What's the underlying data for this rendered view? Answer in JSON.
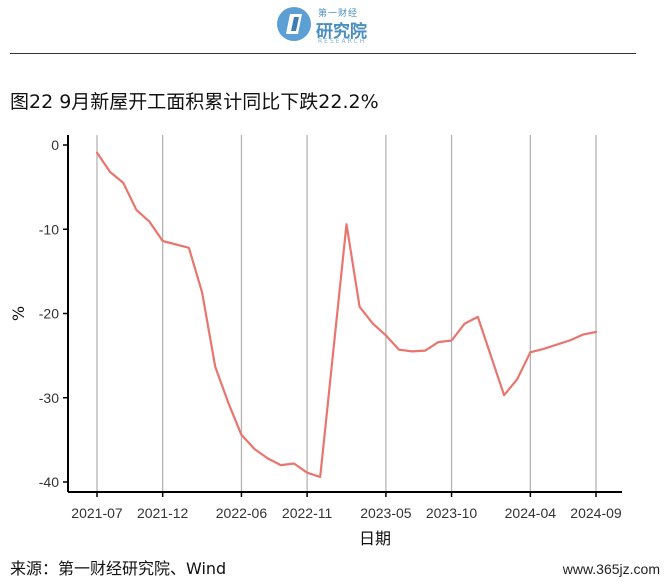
{
  "header": {
    "logo_sub": "第一财经",
    "logo_main": "研究院",
    "logo_en": "RESEARCH"
  },
  "title": "图22 9月新屋开工面积累计同比下跌22.2%",
  "source": "来源：第一财经研究院、Wind",
  "watermark": "www.365jz.com",
  "colors": {
    "line": "#e8766e",
    "grid": "#b3b3b3",
    "axis": "#000000"
  },
  "chart_data": {
    "type": "line",
    "xlabel": "日期",
    "ylabel": "%",
    "ylim": [
      -40,
      0
    ],
    "yticks": [
      0,
      -10,
      -20,
      -30,
      -40
    ],
    "xticks": [
      "2021-07",
      "2021-12",
      "2022-06",
      "2022-11",
      "2023-05",
      "2023-10",
      "2024-04",
      "2024-09"
    ],
    "grid": "vertical",
    "series": [
      {
        "x": [
          "2021-07",
          "2021-08",
          "2021-09",
          "2021-10",
          "2021-11",
          "2021-12",
          "2022-02",
          "2022-03",
          "2022-04",
          "2022-05",
          "2022-06",
          "2022-07",
          "2022-08",
          "2022-09",
          "2022-10",
          "2022-11",
          "2022-12",
          "2023-02",
          "2023-03",
          "2023-04",
          "2023-05",
          "2023-06",
          "2023-07",
          "2023-08",
          "2023-09",
          "2023-10",
          "2023-11",
          "2023-12",
          "2024-02",
          "2024-03",
          "2024-04",
          "2024-05",
          "2024-06",
          "2024-07",
          "2024-08",
          "2024-09"
        ],
        "values": [
          -0.9,
          -3.2,
          -4.5,
          -7.7,
          -9.1,
          -11.4,
          -12.2,
          -17.5,
          -26.3,
          -30.6,
          -34.4,
          -36.1,
          -37.2,
          -38.0,
          -37.8,
          -38.9,
          -39.4,
          -9.4,
          -19.2,
          -21.2,
          -22.6,
          -24.3,
          -24.5,
          -24.4,
          -23.4,
          -23.2,
          -21.2,
          -20.4,
          -29.7,
          -27.8,
          -24.6,
          -24.2,
          -23.7,
          -23.2,
          -22.5,
          -22.2
        ]
      }
    ]
  }
}
